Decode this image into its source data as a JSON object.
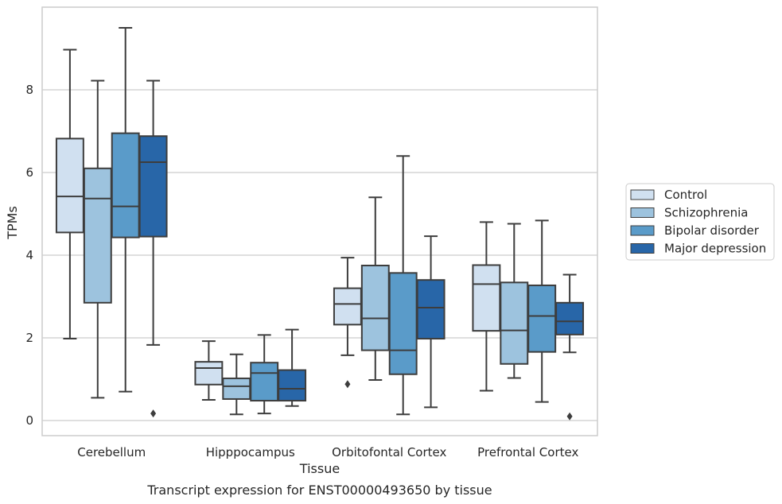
{
  "chart_data": {
    "type": "boxplot",
    "title": "",
    "xlabel": "Tissue",
    "ylabel": "TPMs",
    "caption": "Transcript expression for ENST00000493650 by tissue",
    "ylim": [
      -0.3,
      10.0
    ],
    "yticks": [
      0,
      2,
      4,
      6,
      8
    ],
    "grid": true,
    "legend_position": "right",
    "categories": [
      "Cerebellum",
      "Hipppocampus",
      "Orbitofontal Cortex",
      "Prefrontal Cortex"
    ],
    "series": [
      {
        "name": "Control",
        "color": "#d0e0f0",
        "boxes": [
          {
            "whislo": 1.98,
            "q1": 4.55,
            "med": 5.42,
            "q3": 6.82,
            "whishi": 8.97,
            "fliers": []
          },
          {
            "whislo": 0.5,
            "q1": 0.87,
            "med": 1.27,
            "q3": 1.42,
            "whishi": 1.92,
            "fliers": []
          },
          {
            "whislo": 1.58,
            "q1": 2.32,
            "med": 2.82,
            "q3": 3.2,
            "whishi": 3.94,
            "fliers": [
              0.88
            ]
          },
          {
            "whislo": 0.72,
            "q1": 2.17,
            "med": 3.3,
            "q3": 3.76,
            "whishi": 4.8,
            "fliers": []
          }
        ]
      },
      {
        "name": "Schizophrenia",
        "color": "#9dc3de",
        "boxes": [
          {
            "whislo": 0.55,
            "q1": 2.85,
            "med": 5.37,
            "q3": 6.1,
            "whishi": 8.22,
            "fliers": []
          },
          {
            "whislo": 0.15,
            "q1": 0.52,
            "med": 0.83,
            "q3": 1.02,
            "whishi": 1.6,
            "fliers": []
          },
          {
            "whislo": 0.98,
            "q1": 1.7,
            "med": 2.47,
            "q3": 3.75,
            "whishi": 5.4,
            "fliers": []
          },
          {
            "whislo": 1.03,
            "q1": 1.37,
            "med": 2.18,
            "q3": 3.34,
            "whishi": 4.76,
            "fliers": []
          }
        ]
      },
      {
        "name": "Bipolar disorder",
        "color": "#5a9bc9",
        "boxes": [
          {
            "whislo": 0.7,
            "q1": 4.43,
            "med": 5.18,
            "q3": 6.95,
            "whishi": 9.5,
            "fliers": []
          },
          {
            "whislo": 0.17,
            "q1": 0.48,
            "med": 1.15,
            "q3": 1.4,
            "whishi": 2.07,
            "fliers": []
          },
          {
            "whislo": 0.15,
            "q1": 1.12,
            "med": 1.7,
            "q3": 3.57,
            "whishi": 6.4,
            "fliers": []
          },
          {
            "whislo": 0.45,
            "q1": 1.66,
            "med": 2.53,
            "q3": 3.27,
            "whishi": 4.84,
            "fliers": []
          }
        ]
      },
      {
        "name": "Major depression",
        "color": "#2866a8",
        "boxes": [
          {
            "whislo": 1.83,
            "q1": 4.45,
            "med": 6.25,
            "q3": 6.88,
            "whishi": 8.22,
            "fliers": [
              0.17
            ]
          },
          {
            "whislo": 0.35,
            "q1": 0.48,
            "med": 0.77,
            "q3": 1.22,
            "whishi": 2.2,
            "fliers": []
          },
          {
            "whislo": 0.32,
            "q1": 1.98,
            "med": 2.73,
            "q3": 3.4,
            "whishi": 4.46,
            "fliers": []
          },
          {
            "whislo": 1.65,
            "q1": 2.08,
            "med": 2.4,
            "q3": 2.85,
            "whishi": 3.53,
            "fliers": [
              0.1
            ]
          }
        ]
      }
    ],
    "colors": {
      "box_edge": "#3d3d3d",
      "grid": "#cccccc",
      "frame": "#cccccc"
    }
  }
}
